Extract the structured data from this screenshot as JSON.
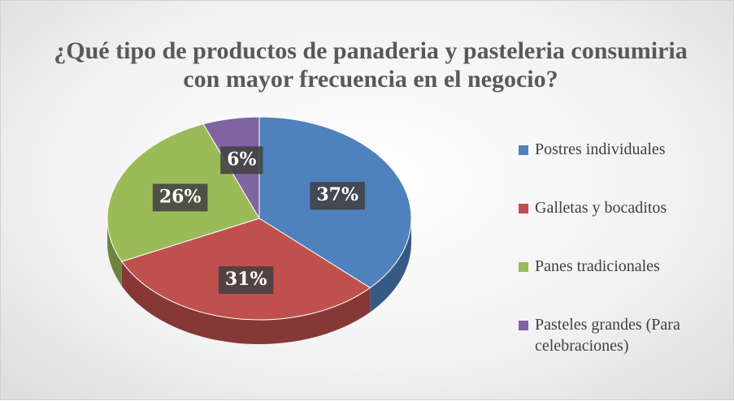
{
  "chart_data": {
    "type": "pie",
    "title": "¿Qué tipo de productos de panaderia y pasteleria consumiria con mayor frecuencia en el negocio?",
    "categories": [
      "Postres individuales",
      "Galletas y bocaditos",
      "Panes tradicionales",
      "Pasteles grandes (Para celebraciones)"
    ],
    "values": [
      37,
      31,
      26,
      6
    ],
    "value_labels": [
      "37%",
      "31%",
      "26%",
      "6%"
    ],
    "colors": [
      "#4f81bd",
      "#c0504d",
      "#9bbb59",
      "#8064a2"
    ],
    "legend": "right"
  }
}
